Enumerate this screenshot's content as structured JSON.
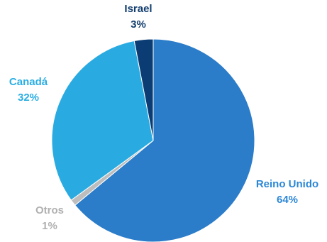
{
  "chart_data": {
    "type": "pie",
    "start_angle_deg": 0,
    "direction": "clockwise",
    "slices": [
      {
        "label": "Reino Unido",
        "value": 64,
        "value_label": "64%",
        "color": "#2b7cc9",
        "label_color": "#2b87d6"
      },
      {
        "label": "Otros",
        "value": 1,
        "value_label": "1%",
        "color": "#bdbdbd",
        "label_color": "#b0b0b0"
      },
      {
        "label": "Canadá",
        "value": 32,
        "value_label": "32%",
        "color": "#29abe2",
        "label_color": "#2aaee3"
      },
      {
        "label": "Israel",
        "value": 3,
        "value_label": "3%",
        "color": "#0b3c73",
        "label_color": "#123d6e"
      }
    ]
  }
}
